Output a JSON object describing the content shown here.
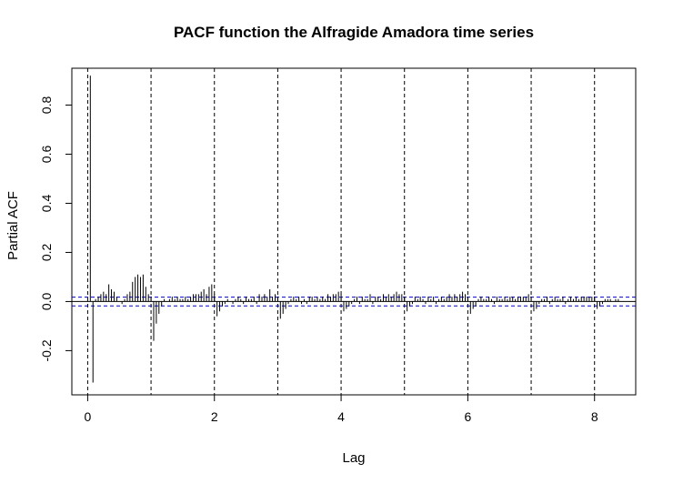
{
  "chart_data": {
    "type": "bar",
    "title": "PACF function the Alfragide Amadora time series",
    "xlabel": "Lag",
    "ylabel": "Partial ACF",
    "xlim": [
      -0.25,
      8.65
    ],
    "ylim": [
      -0.38,
      0.95
    ],
    "x_ticks": [
      {
        "value": 0,
        "label": "0"
      },
      {
        "value": 2,
        "label": "2"
      },
      {
        "value": 4,
        "label": "4"
      },
      {
        "value": 6,
        "label": "6"
      },
      {
        "value": 8,
        "label": "8"
      }
    ],
    "y_ticks": [
      {
        "value": -0.2,
        "label": "-0.2"
      },
      {
        "value": 0.0,
        "label": "0.0"
      },
      {
        "value": 0.2,
        "label": "0.2"
      },
      {
        "value": 0.4,
        "label": "0.4"
      },
      {
        "value": 0.6,
        "label": "0.6"
      },
      {
        "value": 0.8,
        "label": "0.8"
      }
    ],
    "zero_line": 0,
    "confidence_bounds": [
      0.018,
      -0.018
    ],
    "period_lines": [
      0,
      1,
      2,
      3,
      4,
      5,
      6,
      7,
      8
    ],
    "grid": false,
    "series": [
      {
        "x": [
          0.0417,
          0.0833,
          0.125,
          0.1667,
          0.2083,
          0.25,
          0.2917,
          0.3333,
          0.375,
          0.4167,
          0.4583,
          0.5,
          0.5417,
          0.5833,
          0.625,
          0.6667,
          0.7083,
          0.75,
          0.7917,
          0.8333,
          0.875,
          0.9167,
          0.9583,
          1.0,
          1.0417,
          1.0833,
          1.125,
          1.1667,
          1.2083,
          1.25,
          1.2917,
          1.3333,
          1.375,
          1.4167,
          1.4583,
          1.5,
          1.5417,
          1.5833,
          1.625,
          1.6667,
          1.7083,
          1.75,
          1.7917,
          1.8333,
          1.875,
          1.9167,
          1.9583,
          2.0,
          2.0417,
          2.0833,
          2.125,
          2.1667,
          2.2083,
          2.25,
          2.2917,
          2.3333,
          2.375,
          2.4167,
          2.4583,
          2.5,
          2.5417,
          2.5833,
          2.625,
          2.6667,
          2.7083,
          2.75,
          2.7917,
          2.8333,
          2.875,
          2.9167,
          2.9583,
          3.0,
          3.0417,
          3.0833,
          3.125,
          3.1667,
          3.2083,
          3.25,
          3.2917,
          3.3333,
          3.375,
          3.4167,
          3.4583,
          3.5,
          3.5417,
          3.5833,
          3.625,
          3.6667,
          3.7083,
          3.75,
          3.7917,
          3.8333,
          3.875,
          3.9167,
          3.9583,
          4.0,
          4.0417,
          4.0833,
          4.125,
          4.1667,
          4.2083,
          4.25,
          4.2917,
          4.3333,
          4.375,
          4.4167,
          4.4583,
          4.5,
          4.5417,
          4.5833,
          4.625,
          4.6667,
          4.7083,
          4.75,
          4.7917,
          4.8333,
          4.875,
          4.9167,
          4.9583,
          5.0,
          5.0417,
          5.0833,
          5.125,
          5.1667,
          5.2083,
          5.25,
          5.2917,
          5.3333,
          5.375,
          5.4167,
          5.4583,
          5.5,
          5.5417,
          5.5833,
          5.625,
          5.6667,
          5.7083,
          5.75,
          5.7917,
          5.8333,
          5.875,
          5.9167,
          5.9583,
          6.0,
          6.0417,
          6.0833,
          6.125,
          6.1667,
          6.2083,
          6.25,
          6.2917,
          6.3333,
          6.375,
          6.4167,
          6.4583,
          6.5,
          6.5417,
          6.5833,
          6.625,
          6.6667,
          6.7083,
          6.75,
          6.7917,
          6.8333,
          6.875,
          6.9167,
          6.9583,
          7.0,
          7.0417,
          7.0833,
          7.125,
          7.1667,
          7.2083,
          7.25,
          7.2917,
          7.3333,
          7.375,
          7.4167,
          7.4583,
          7.5,
          7.5417,
          7.5833,
          7.625,
          7.6667,
          7.7083,
          7.75,
          7.7917,
          7.8333,
          7.875,
          7.9167,
          7.9583,
          8.0,
          8.0417,
          8.0833,
          8.125,
          8.1667,
          8.2083,
          8.25,
          8.2917,
          8.3333,
          8.375,
          8.4167
        ],
        "values": [
          0.92,
          -0.33,
          0.01,
          0.02,
          0.03,
          0.04,
          0.03,
          0.07,
          0.05,
          0.04,
          0.02,
          0.0,
          -0.01,
          0.01,
          0.03,
          0.04,
          0.08,
          0.1,
          0.11,
          0.1,
          0.11,
          0.06,
          0.03,
          0.02,
          -0.16,
          -0.09,
          -0.05,
          -0.02,
          0.01,
          0.0,
          0.01,
          0.02,
          0.01,
          0.02,
          0.01,
          0.01,
          0.02,
          0.01,
          0.02,
          0.03,
          0.03,
          0.03,
          0.04,
          0.05,
          0.03,
          0.06,
          0.07,
          0.03,
          -0.06,
          -0.04,
          -0.02,
          -0.01,
          0.01,
          0.0,
          -0.01,
          0.01,
          0.02,
          0.01,
          -0.01,
          0.02,
          0.01,
          0.01,
          0.02,
          -0.01,
          0.03,
          0.02,
          0.03,
          0.02,
          0.05,
          0.02,
          0.03,
          0.02,
          -0.07,
          -0.05,
          -0.03,
          -0.01,
          0.01,
          0.02,
          0.01,
          0.02,
          -0.01,
          0.01,
          -0.01,
          0.02,
          0.02,
          0.01,
          0.02,
          0.01,
          0.02,
          0.01,
          0.03,
          0.02,
          0.03,
          0.03,
          0.04,
          0.03,
          -0.04,
          -0.03,
          -0.02,
          -0.01,
          0.01,
          0.02,
          -0.01,
          0.02,
          0.01,
          0.01,
          0.03,
          -0.01,
          0.02,
          0.02,
          0.01,
          0.03,
          0.02,
          0.03,
          0.02,
          0.03,
          0.04,
          0.03,
          0.03,
          0.02,
          -0.04,
          -0.02,
          -0.01,
          0.02,
          0.01,
          0.02,
          0.01,
          -0.01,
          0.02,
          0.01,
          0.02,
          -0.01,
          0.01,
          0.02,
          0.01,
          0.02,
          0.03,
          0.02,
          0.03,
          0.02,
          0.03,
          0.04,
          0.03,
          0.02,
          -0.05,
          -0.03,
          -0.02,
          0.01,
          0.02,
          0.01,
          0.01,
          0.02,
          0.01,
          -0.01,
          0.02,
          0.01,
          0.01,
          0.02,
          0.01,
          0.02,
          0.02,
          0.01,
          0.02,
          0.02,
          0.02,
          0.02,
          0.03,
          0.02,
          -0.04,
          -0.03,
          -0.01,
          0.01,
          0.01,
          0.02,
          -0.01,
          0.01,
          0.02,
          0.01,
          0.01,
          0.02,
          -0.01,
          0.01,
          0.02,
          0.01,
          0.02,
          0.01,
          0.02,
          0.02,
          0.02,
          0.02,
          0.02,
          0.02,
          -0.03,
          -0.02,
          -0.01,
          0.01,
          0.01,
          0.01,
          0.0,
          0.01,
          0.01,
          0.0
        ]
      }
    ]
  },
  "colors": {
    "bars": "#000000",
    "confidence": "#0000cc",
    "axis": "#000000",
    "period_lines": "#000000"
  }
}
